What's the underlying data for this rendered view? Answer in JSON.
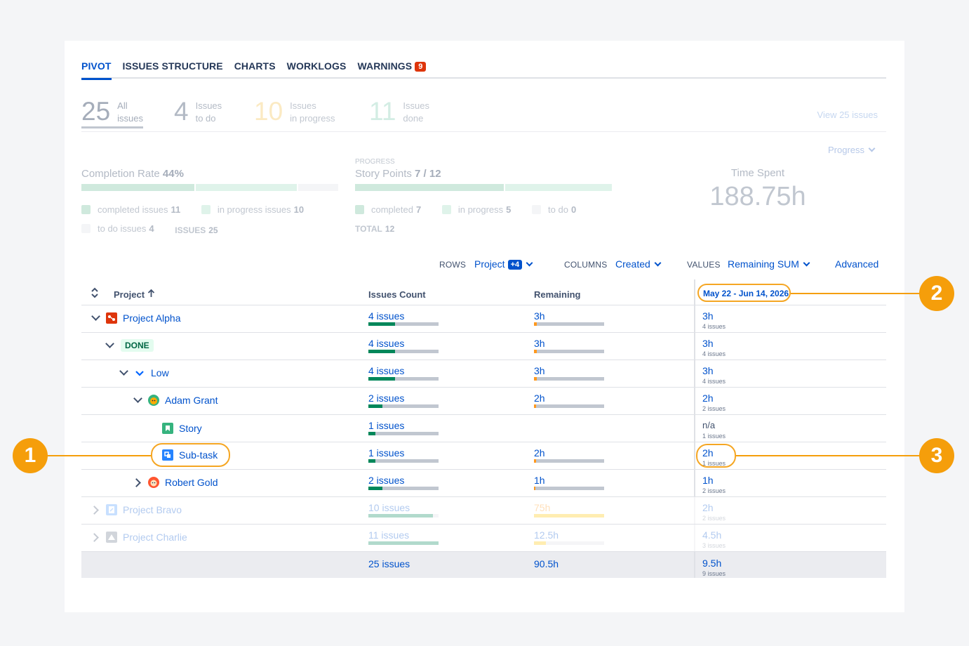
{
  "tabs": [
    {
      "label": "PIVOT"
    },
    {
      "label": "ISSUES STRUCTURE"
    },
    {
      "label": "CHARTS"
    },
    {
      "label": "WORKLOGS"
    },
    {
      "label": "WARNINGS",
      "badge": "9"
    }
  ],
  "summary": {
    "all": {
      "num": "25",
      "l1": "All",
      "l2": "issues"
    },
    "todo": {
      "num": "4",
      "l1": "Issues",
      "l2": "to do"
    },
    "progress": {
      "num": "10",
      "l1": "Issues",
      "l2": "in progress"
    },
    "done": {
      "num": "11",
      "l1": "Issues",
      "l2": "done"
    },
    "view_link": "View 25 issues"
  },
  "progress_dropdown": "Progress",
  "completion": {
    "title": "Completion Rate",
    "value": "44%",
    "legend": {
      "completed_label": "completed issues",
      "completed": "11",
      "in_progress_label": "in progress issues",
      "in_progress": "10",
      "todo_label": "to do issues",
      "todo": "4",
      "issues_label": "ISSUES",
      "issues": "25"
    },
    "fractions": {
      "completed": 0.44,
      "in_progress": 0.4,
      "todo": 0.16
    }
  },
  "story_points": {
    "caption": "PROGRESS",
    "title": "Story Points",
    "value": "7 / 12",
    "legend": {
      "completed_label": "completed",
      "completed": "7",
      "in_progress_label": "in progress",
      "in_progress": "5",
      "todo_label": "to do",
      "todo": "0",
      "total_label": "TOTAL",
      "total": "12"
    },
    "fractions": {
      "completed": 0.58,
      "in_progress": 0.42
    }
  },
  "time_spent": {
    "title": "Time Spent",
    "value": "188.75h"
  },
  "controls": {
    "rows_label": "ROWS",
    "rows_value": "Project",
    "rows_badge": "+4",
    "columns_label": "COLUMNS",
    "columns_value": "Created",
    "values_label": "VALUES",
    "values_value": "Remaining SUM",
    "advanced": "Advanced"
  },
  "table": {
    "headers": {
      "project": "Project",
      "count": "Issues Count",
      "remaining": "Remaining",
      "date": "May 22 - Jun 14, 2026"
    },
    "rows": [
      {
        "name": "Project Alpha",
        "count": "4 issues",
        "count_fill": 0.38,
        "rem": "3h",
        "rem_fill": 0.04,
        "dv": "3h",
        "ds": "4 issues"
      },
      {
        "name": "DONE",
        "count": "4 issues",
        "count_fill": 0.38,
        "rem": "3h",
        "rem_fill": 0.04,
        "dv": "3h",
        "ds": "4 issues"
      },
      {
        "name": "Low",
        "count": "4 issues",
        "count_fill": 0.38,
        "rem": "3h",
        "rem_fill": 0.04,
        "dv": "3h",
        "ds": "4 issues"
      },
      {
        "name": "Adam Grant",
        "count": "2 issues",
        "count_fill": 0.2,
        "rem": "2h",
        "rem_fill": 0.03,
        "dv": "2h",
        "ds": "2 issues"
      },
      {
        "name": "Story",
        "count": "1 issues",
        "count_fill": 0.1,
        "rem": "",
        "rem_fill": 0,
        "dv": "n/a",
        "ds": "1 issues"
      },
      {
        "name": "Sub-task",
        "count": "1 issues",
        "count_fill": 0.1,
        "rem": "2h",
        "rem_fill": 0.03,
        "dv": "2h",
        "ds": "1 issues"
      },
      {
        "name": "Robert Gold",
        "count": "2 issues",
        "count_fill": 0.2,
        "rem": "1h",
        "rem_fill": 0.02,
        "dv": "1h",
        "ds": "2 issues"
      },
      {
        "name": "Project Bravo",
        "count": "10 issues",
        "count_fill": 0.92,
        "rem": "75h",
        "rem_fill": 1.0,
        "dv": "2h",
        "ds": "2 issues"
      },
      {
        "name": "Project Charlie",
        "count": "11 issues",
        "count_fill": 1.0,
        "rem": "12.5h",
        "rem_fill": 0.17,
        "dv": "4.5h",
        "ds": "3 issues"
      }
    ],
    "total": {
      "count": "25 issues",
      "rem": "90.5h",
      "dv": "9.5h",
      "ds": "9 issues"
    }
  },
  "callouts": {
    "one": "1",
    "two": "2",
    "three": "3"
  },
  "colors": {
    "accent": "#0052cc",
    "done_green": "#00875a",
    "remaining_orange": "#ff991f",
    "callout": "#f59e0b"
  }
}
